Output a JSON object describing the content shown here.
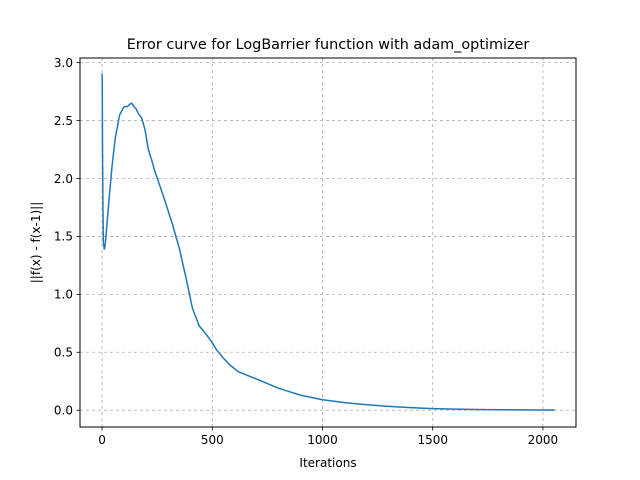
{
  "chart_data": {
    "type": "line",
    "title": "Error curve for LogBarrier function with adam_optimizer",
    "xlabel": "Iterations",
    "ylabel": "||f(x) - f(x-1)||",
    "xlim": [
      -100,
      2150
    ],
    "ylim": [
      -0.145,
      3.04
    ],
    "xticks": [
      0,
      500,
      1000,
      1500,
      2000
    ],
    "yticks": [
      0.0,
      0.5,
      1.0,
      1.5,
      2.0,
      2.5,
      3.0
    ],
    "xtick_labels": [
      "0",
      "500",
      "1000",
      "1500",
      "2000"
    ],
    "ytick_labels": [
      "0.0",
      "0.5",
      "1.0",
      "1.5",
      "2.0",
      "2.5",
      "3.0"
    ],
    "grid": true,
    "legend": "none",
    "series": [
      {
        "color": "#1f77b4",
        "x": [
          0,
          1,
          2,
          4,
          6,
          10,
          14,
          20,
          30,
          45,
          60,
          80,
          100,
          115,
          125,
          135,
          145,
          155,
          165,
          180,
          195,
          210,
          225,
          240,
          260,
          290,
          320,
          350,
          380,
          410,
          440,
          470,
          490,
          500,
          520,
          550,
          580,
          620,
          660,
          700,
          750,
          800,
          850,
          900,
          950,
          1000,
          1100,
          1200,
          1300,
          1400,
          1500,
          1600,
          1700,
          1800,
          1900,
          2000,
          2050
        ],
        "y": [
          2.9,
          2.85,
          2.3,
          1.75,
          1.45,
          1.39,
          1.42,
          1.55,
          1.78,
          2.1,
          2.35,
          2.55,
          2.62,
          2.62,
          2.64,
          2.65,
          2.62,
          2.6,
          2.56,
          2.52,
          2.42,
          2.25,
          2.16,
          2.06,
          1.95,
          1.78,
          1.6,
          1.4,
          1.15,
          0.88,
          0.73,
          0.66,
          0.61,
          0.58,
          0.52,
          0.45,
          0.39,
          0.33,
          0.3,
          0.27,
          0.23,
          0.19,
          0.16,
          0.13,
          0.11,
          0.09,
          0.065,
          0.047,
          0.033,
          0.022,
          0.014,
          0.009,
          0.006,
          0.004,
          0.003,
          0.002,
          0.002
        ]
      }
    ]
  }
}
